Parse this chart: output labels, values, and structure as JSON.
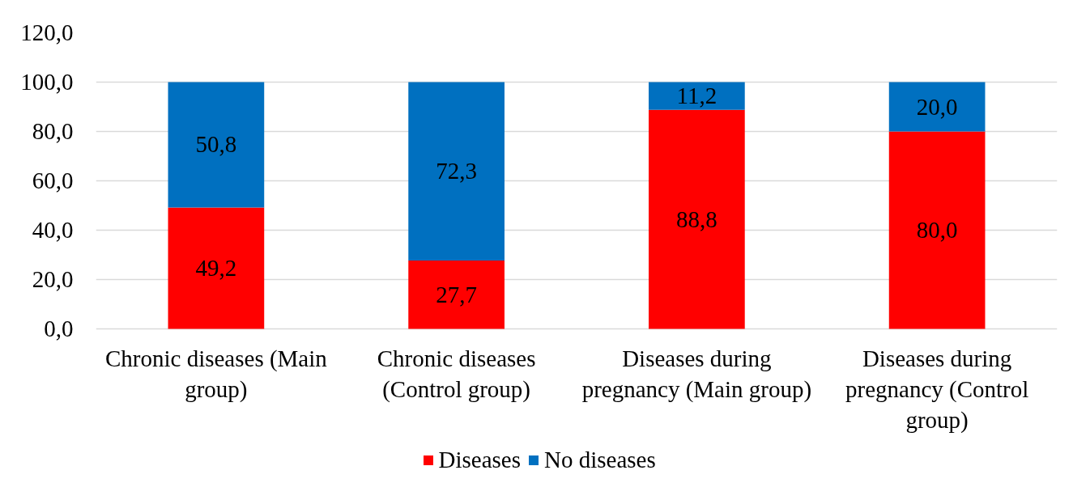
{
  "chart_data": {
    "type": "bar",
    "stacked": true,
    "categories": [
      "Chronic diseases (Main group)",
      "Chronic diseases (Control group)",
      "Diseases during pregnancy (Main group)",
      "Diseases during pregnancy (Control group)"
    ],
    "series": [
      {
        "name": "Diseases",
        "color": "#ff0000",
        "values": [
          49.2,
          27.7,
          88.8,
          80.0
        ],
        "value_labels": [
          "49,2",
          "27,7",
          "88,8",
          "80,0"
        ]
      },
      {
        "name": "No diseases",
        "color": "#0070c0",
        "values": [
          50.8,
          72.3,
          11.2,
          20.0
        ],
        "value_labels": [
          "50,8",
          "72,3",
          "11,2",
          "20,0"
        ]
      }
    ],
    "ylim": [
      0,
      120
    ],
    "yticks": [
      {
        "value": 0,
        "label": "0,0"
      },
      {
        "value": 20,
        "label": "20,0"
      },
      {
        "value": 40,
        "label": "40,0"
      },
      {
        "value": 60,
        "label": "60,0"
      },
      {
        "value": 80,
        "label": "80,0"
      },
      {
        "value": 100,
        "label": "100,0"
      },
      {
        "value": 120,
        "label": "120,0"
      }
    ],
    "grid": "y",
    "legend": "bottom"
  }
}
